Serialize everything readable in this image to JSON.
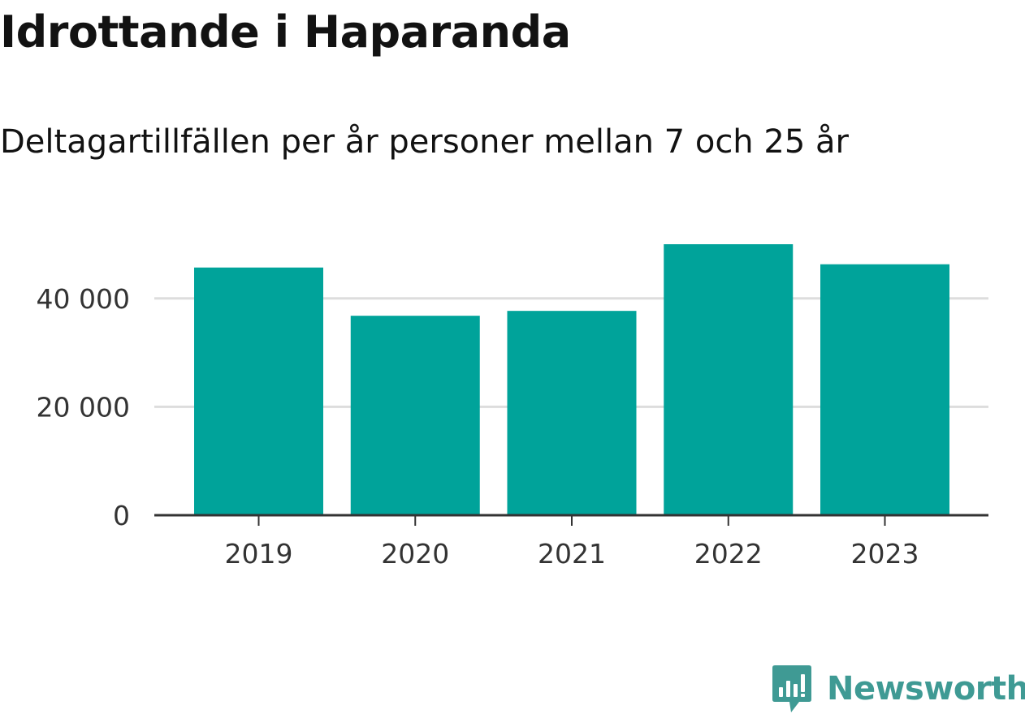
{
  "header": {
    "title": "Idrottande i Haparanda",
    "subtitle": "Deltagartillfällen per år personer mellan 7 och 25 år"
  },
  "brand": {
    "name": "Newsworthy",
    "icon": "newsworthy-logo-icon",
    "color": "#3f9a94"
  },
  "colors": {
    "bar": "#00a39a",
    "grid": "#dddddd",
    "axis": "#333333"
  },
  "chart_data": {
    "type": "bar",
    "title": "Idrottande i Haparanda",
    "subtitle": "Deltagartillfällen per år personer mellan 7 och 25 år",
    "categories": [
      "2019",
      "2020",
      "2021",
      "2022",
      "2023"
    ],
    "values": [
      45700,
      36800,
      37700,
      50000,
      46300
    ],
    "ylim": [
      0,
      50000
    ],
    "yticks": [
      0,
      20000,
      40000
    ],
    "ytick_labels": [
      "0",
      "20 000",
      "40 000"
    ],
    "grid": true,
    "legend": "none"
  }
}
